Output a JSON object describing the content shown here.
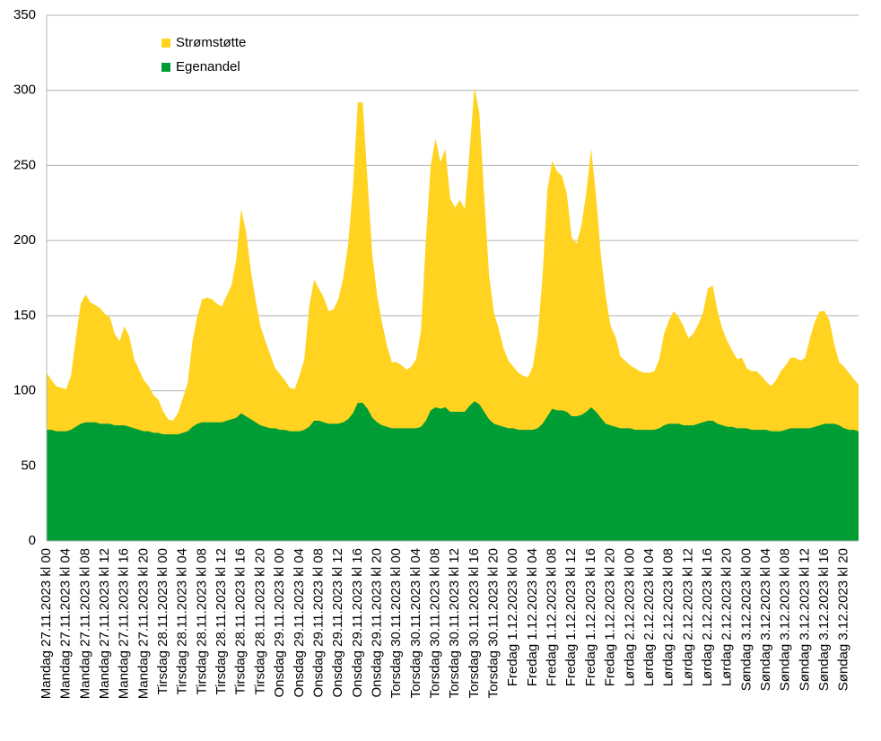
{
  "chart_data": {
    "type": "stacked_area",
    "categories": [
      "Mandag 27.11.2023 kl 00",
      null,
      null,
      null,
      "Mandag 27.11.2023 kl 04",
      null,
      null,
      null,
      "Mandag 27.11.2023 kl 08",
      null,
      null,
      null,
      "Mandag 27.11.2023 kl 12",
      null,
      null,
      null,
      "Mandag 27.11.2023 kl 16",
      null,
      null,
      null,
      "Mandag 27.11.2023 kl 20",
      null,
      null,
      null,
      "Tirsdag 28.11.2023 kl 00",
      null,
      null,
      null,
      "Tirsdag 28.11.2023 kl 04",
      null,
      null,
      null,
      "Tirsdag 28.11.2023 kl 08",
      null,
      null,
      null,
      "Tirsdag 28.11.2023 kl 12",
      null,
      null,
      null,
      "Tirsdag 28.11.2023 kl 16",
      null,
      null,
      null,
      "Tirsdag 28.11.2023 kl 20",
      null,
      null,
      null,
      "Onsdag 29.11.2023 kl 00",
      null,
      null,
      null,
      "Onsdag 29.11.2023 kl 04",
      null,
      null,
      null,
      "Onsdag 29.11.2023 kl 08",
      null,
      null,
      null,
      "Onsdag 29.11.2023 kl 12",
      null,
      null,
      null,
      "Onsdag 29.11.2023 kl 16",
      null,
      null,
      null,
      "Onsdag 29.11.2023 kl 20",
      null,
      null,
      null,
      "Torsdag 30.11.2023 kl 00",
      null,
      null,
      null,
      "Torsdag 30.11.2023 kl 04",
      null,
      null,
      null,
      "Torsdag 30.11.2023 kl 08",
      null,
      null,
      null,
      "Torsdag 30.11.2023 kl 12",
      null,
      null,
      null,
      "Torsdag 30.11.2023 kl 16",
      null,
      null,
      null,
      "Torsdag 30.11.2023 kl 20",
      null,
      null,
      null,
      "Fredag 1.12.2023 kl 00",
      null,
      null,
      null,
      "Fredag 1.12.2023 kl 04",
      null,
      null,
      null,
      "Fredag 1.12.2023 kl 08",
      null,
      null,
      null,
      "Fredag 1.12.2023 kl 12",
      null,
      null,
      null,
      "Fredag 1.12.2023 kl 16",
      null,
      null,
      null,
      "Fredag 1.12.2023 kl 20",
      null,
      null,
      null,
      "Lørdag 2.12.2023 kl 00",
      null,
      null,
      null,
      "Lørdag 2.12.2023 kl 04",
      null,
      null,
      null,
      "Lørdag 2.12.2023 kl 08",
      null,
      null,
      null,
      "Lørdag 2.12.2023 kl 12",
      null,
      null,
      null,
      "Lørdag 2.12.2023 kl 16",
      null,
      null,
      null,
      "Lørdag 2.12.2023 kl 20",
      null,
      null,
      null,
      "Søndag 3.12.2023 kl 00",
      null,
      null,
      null,
      "Søndag 3.12.2023 kl 04",
      null,
      null,
      null,
      "Søndag 3.12.2023 kl 08",
      null,
      null,
      null,
      "Søndag 3.12.2023 kl 12",
      null,
      null,
      null,
      "Søndag 3.12.2023 kl 16",
      null,
      null,
      null,
      "Søndag 3.12.2023 kl 20",
      null,
      null,
      null
    ],
    "series": [
      {
        "name": "Egenandel",
        "color": "#009d35",
        "values": [
          74,
          74,
          73,
          73,
          73,
          74,
          76,
          78,
          79,
          79,
          79,
          78,
          78,
          78,
          77,
          77,
          77,
          76,
          75,
          74,
          73,
          73,
          72,
          72,
          71,
          71,
          71,
          71,
          72,
          73,
          76,
          78,
          79,
          79,
          79,
          79,
          79,
          80,
          81,
          82,
          85,
          83,
          81,
          79,
          77,
          76,
          75,
          75,
          74,
          74,
          73,
          73,
          73,
          74,
          76,
          80,
          80,
          79,
          78,
          78,
          78,
          79,
          81,
          85,
          92,
          92,
          88,
          82,
          79,
          77,
          76,
          75,
          75,
          75,
          75,
          75,
          75,
          76,
          80,
          87,
          89,
          88,
          89,
          86,
          86,
          86,
          86,
          90,
          93,
          91,
          86,
          81,
          78,
          77,
          76,
          75,
          75,
          74,
          74,
          74,
          74,
          75,
          78,
          83,
          88,
          87,
          87,
          86,
          83,
          83,
          84,
          86,
          89,
          86,
          82,
          78,
          77,
          76,
          75,
          75,
          75,
          74,
          74,
          74,
          74,
          74,
          75,
          77,
          78,
          78,
          78,
          77,
          77,
          77,
          78,
          79,
          80,
          80,
          78,
          77,
          76,
          76,
          75,
          75,
          75,
          74,
          74,
          74,
          74,
          73,
          73,
          73,
          74,
          75,
          75,
          75,
          75,
          75,
          76,
          77,
          78,
          78,
          78,
          77,
          75,
          74,
          74,
          73
        ]
      },
      {
        "name": "Strømstøtte",
        "color": "#ffd320",
        "values": [
          38,
          33,
          30,
          29,
          28,
          36,
          59,
          80,
          85,
          80,
          78,
          77,
          73,
          71,
          61,
          56,
          66,
          60,
          46,
          40,
          34,
          30,
          25,
          22,
          15,
          10,
          9,
          14,
          23,
          32,
          57,
          72,
          82,
          83,
          82,
          79,
          77,
          83,
          89,
          105,
          136,
          123,
          99,
          81,
          66,
          57,
          49,
          40,
          37,
          33,
          29,
          28,
          37,
          47,
          80,
          94,
          88,
          83,
          75,
          76,
          83,
          96,
          116,
          150,
          200,
          200,
          152,
          108,
          84,
          68,
          54,
          44,
          44,
          42,
          39,
          41,
          46,
          64,
          120,
          163,
          179,
          164,
          172,
          142,
          136,
          141,
          135,
          170,
          209,
          194,
          144,
          96,
          74,
          64,
          52,
          45,
          41,
          38,
          36,
          35,
          42,
          62,
          98,
          151,
          165,
          159,
          156,
          145,
          119,
          115,
          126,
          146,
          172,
          144,
          108,
          85,
          66,
          60,
          48,
          45,
          42,
          41,
          39,
          38,
          38,
          39,
          46,
          61,
          69,
          75,
          71,
          66,
          58,
          61,
          66,
          73,
          88,
          90,
          75,
          64,
          57,
          51,
          46,
          47,
          40,
          39,
          39,
          36,
          32,
          30,
          34,
          40,
          43,
          47,
          47,
          45,
          47,
          60,
          70,
          76,
          75,
          69,
          53,
          42,
          41,
          38,
          34,
          31
        ]
      }
    ],
    "ylim": [
      0,
      350
    ],
    "yticks": [
      0,
      50,
      100,
      150,
      200,
      250,
      300,
      350
    ],
    "grid": true,
    "legend": "top-left"
  }
}
